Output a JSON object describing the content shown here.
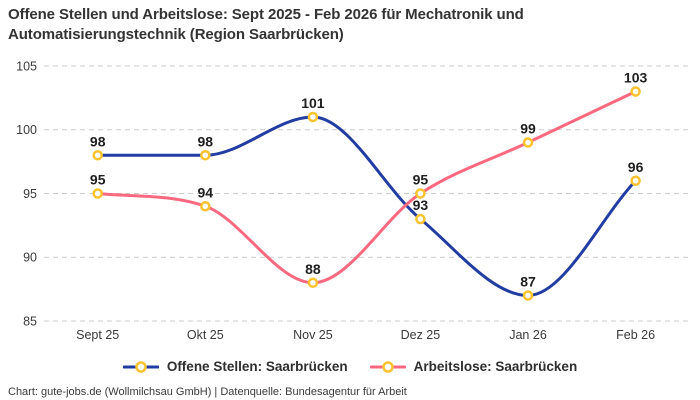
{
  "header": {
    "title": "Offene Stellen und Arbeitslose: Sept 2025 - Feb 2026 für Mechatronik und Automatisierungstechnik (Region Saarbrücken)"
  },
  "colors": {
    "grid": "#cccccc",
    "tick": "#3a3a3a",
    "data_label": "#1f1f1f",
    "blue": "#223da2",
    "pink": "#fa6980",
    "marker_stroke": "#fcc32f",
    "marker_fill": "#ffffff"
  },
  "chart_data": {
    "type": "line",
    "title": "Offene Stellen und Arbeitslose: Sept 2025 - Feb 2026 für Mechatronik und Automatisierungstechnik (Region Saarbrücken)",
    "categories": [
      "Sept 25",
      "Okt 25",
      "Nov 25",
      "Dez 25",
      "Jan 26",
      "Feb 26"
    ],
    "series": [
      {
        "name": "Offene Stellen: Saarbrücken",
        "color": "#223da2",
        "values": [
          98,
          98,
          101,
          93,
          87,
          96
        ]
      },
      {
        "name": "Arbeitslose: Saarbrücken",
        "color": "#fa6980",
        "values": [
          95,
          94,
          88,
          95,
          99,
          103
        ]
      }
    ],
    "ylim": [
      85,
      105
    ],
    "yticks": [
      85,
      90,
      95,
      100,
      105
    ],
    "xlabel": "",
    "ylabel": "",
    "grid": "horizontal dashed",
    "legend_position": "bottom",
    "marker": {
      "shape": "ring",
      "fill": "#ffffff",
      "stroke": "#fcc32f"
    },
    "interpolation": "monotone cubic"
  },
  "footer": {
    "credit": "Chart: gute-jobs.de (Wollmilchsau GmbH) | Datenquelle: Bundesagentur für Arbeit"
  }
}
